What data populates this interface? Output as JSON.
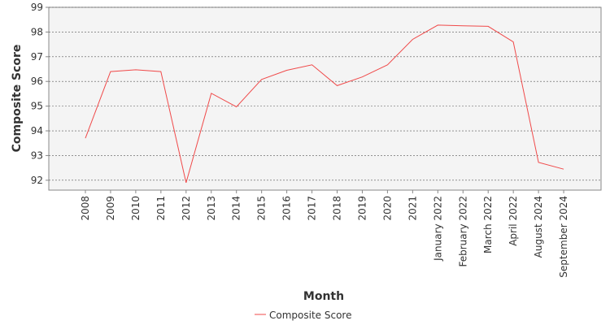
{
  "chart_data": {
    "type": "line",
    "title": "",
    "xlabel": "Month",
    "ylabel": "Composite Score",
    "categories": [
      "2008",
      "2009",
      "2010",
      "2011",
      "2012",
      "2013",
      "2014",
      "2015",
      "2016",
      "2017",
      "2018",
      "2019",
      "2020",
      "2021",
      "January 2022",
      "February 2022",
      "March 2022",
      "April 2022",
      "August 2024",
      "September 2024"
    ],
    "series": [
      {
        "name": "Composite Score",
        "color": "#f04a4a",
        "values": [
          93.7,
          96.4,
          96.47,
          96.4,
          91.9,
          95.52,
          94.97,
          96.08,
          96.45,
          96.67,
          95.83,
          96.18,
          96.67,
          97.7,
          98.28,
          98.25,
          98.23,
          97.6,
          92.72,
          92.45
        ]
      }
    ],
    "ylim": [
      91.6,
      99
    ],
    "yticks": [
      92,
      93,
      94,
      95,
      96,
      97,
      98,
      99
    ],
    "grid": true,
    "legend": "bottom-center"
  }
}
